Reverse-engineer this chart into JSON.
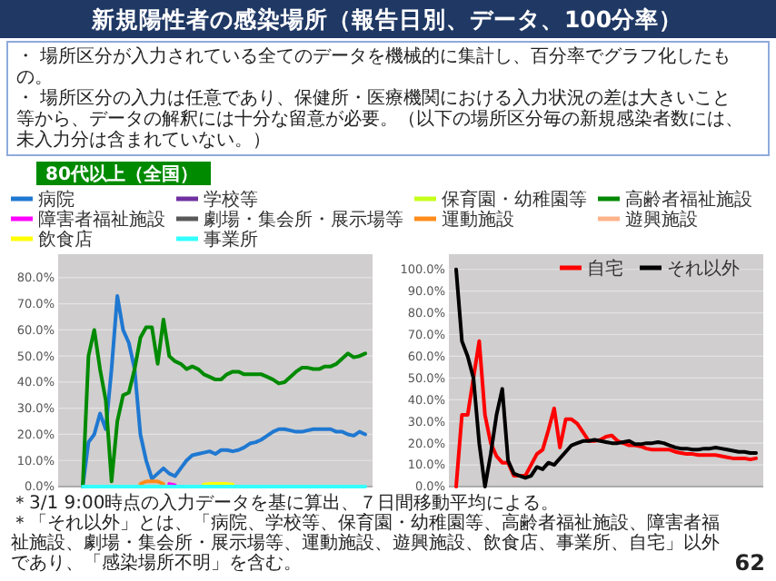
{
  "chart_data": [
    {
      "type": "line",
      "title": "新規陽性者の感染場所（報告日別、データ、100分率）",
      "subtitle": "80代以上（全国）",
      "annotations": [
        "・ 場所区分が入力されている全てのデータを機械的に集計し、百分率でグラフ化したもの。",
        "・ 場所区分の入力は任意であり、保健所・医療機関における入力状況の差は大きいこと等から、データの解釈には十分な留意が必要。（以下の場所区分毎の新規感染者数には、未入力分は含まれていない。）",
        "＊3/1 9:00時点の入力データを基に算出、７日間移動平均による。",
        "＊「それ以外」とは、「病院、学校等、保育園・幼稚園等、高齢者福祉施設、障害者福祉施設、劇場・集会所・展示場等、運動施設、遊興施設、飲食店、事業所、自宅」以外であり、「感染場所不明」を含む。",
        "62"
      ],
      "categories": [
        null,
        null,
        null,
        null,
        null,
        null,
        null,
        null,
        null,
        null,
        null,
        null,
        null,
        null,
        null,
        null,
        null,
        null,
        null,
        null,
        null,
        null,
        null,
        null,
        null,
        null,
        null,
        null,
        null,
        null,
        null,
        null,
        null,
        null,
        null,
        null,
        null,
        null,
        null,
        null,
        null,
        null,
        null,
        null,
        null,
        null,
        null,
        null,
        null,
        null,
        null,
        null,
        null
      ],
      "ylim": [
        0,
        89
      ],
      "yticks": [
        {
          "value": 0,
          "label": "0.0%"
        },
        {
          "value": 10,
          "label": "10.0%"
        },
        {
          "value": 20,
          "label": "20.0%"
        },
        {
          "value": 30,
          "label": "30.0%"
        },
        {
          "value": 40,
          "label": "40.0%"
        },
        {
          "value": 50,
          "label": "50.0%"
        },
        {
          "value": 60,
          "label": "60.0%"
        },
        {
          "value": 70,
          "label": "70.0%"
        },
        {
          "value": 80,
          "label": "80.0%"
        }
      ],
      "grid": "y",
      "legend": "top",
      "tick_labels": "y",
      "series": [
        {
          "name": "病院",
          "color": "#1f78d1",
          "values": [
            null,
            null,
            null,
            0,
            17,
            20,
            28,
            22,
            45,
            73,
            60,
            55,
            45,
            20,
            10,
            3,
            5,
            7,
            5,
            4,
            7,
            10,
            12,
            12.5,
            13,
            13.5,
            12.5,
            14,
            14,
            13.5,
            14,
            15,
            16.5,
            17,
            18,
            19.5,
            21,
            22,
            22,
            21.5,
            21,
            21,
            21.5,
            22,
            22,
            22,
            22,
            21,
            21,
            20,
            19.5,
            21,
            20
          ]
        },
        {
          "name": "学校等",
          "color": "#7030a0",
          "values": [
            null,
            null,
            null,
            null,
            null,
            null,
            null,
            null,
            null,
            null,
            null,
            null,
            null,
            null,
            null,
            null,
            null,
            null,
            null,
            null,
            null,
            null,
            null,
            null,
            null,
            null,
            null,
            null,
            null,
            null,
            null,
            null,
            null,
            null,
            null,
            null,
            null,
            null,
            null,
            null,
            null,
            null,
            null,
            null,
            null,
            null,
            null,
            null,
            null,
            null,
            null,
            null,
            null
          ]
        },
        {
          "name": "保育園・幼稚園等",
          "color": "#c6ff1a",
          "values": [
            null,
            null,
            null,
            null,
            null,
            null,
            null,
            null,
            null,
            null,
            null,
            null,
            null,
            null,
            null,
            null,
            null,
            null,
            null,
            null,
            null,
            null,
            null,
            null,
            null,
            null,
            null,
            null,
            null,
            null,
            null,
            null,
            null,
            null,
            null,
            null,
            null,
            null,
            null,
            null,
            null,
            null,
            null,
            null,
            null,
            null,
            null,
            null,
            null,
            null,
            null,
            null,
            null
          ]
        },
        {
          "name": "高齢者福祉施設",
          "color": "#008a00",
          "values": [
            null,
            null,
            null,
            0,
            50,
            60,
            45,
            33,
            2,
            25,
            35,
            36,
            45,
            57,
            61,
            61,
            47,
            64,
            50,
            48,
            47,
            45,
            46,
            45,
            43,
            42,
            41,
            41,
            43,
            44,
            44,
            43,
            43,
            43,
            43,
            42,
            41,
            39.5,
            40,
            42,
            44,
            45.5,
            45.5,
            45,
            45,
            46,
            46,
            47,
            49,
            51,
            49.5,
            50,
            51
          ]
        },
        {
          "name": "障害者福祉施設",
          "color": "#ff00ff",
          "values": [
            null,
            null,
            null,
            null,
            null,
            null,
            null,
            null,
            null,
            null,
            null,
            null,
            null,
            null,
            null,
            null,
            null,
            null,
            1,
            0.5,
            null,
            null,
            null,
            null,
            null,
            null,
            null,
            null,
            null,
            null,
            null,
            null,
            null,
            null,
            null,
            null,
            null,
            null,
            null,
            null,
            null,
            null,
            null,
            null,
            null,
            null,
            null,
            null,
            null,
            null,
            null,
            null,
            null
          ]
        },
        {
          "name": "劇場・集会所・展示場等",
          "color": "#595959",
          "values": [
            null,
            null,
            null,
            null,
            null,
            null,
            null,
            null,
            null,
            null,
            null,
            null,
            null,
            null,
            null,
            null,
            null,
            null,
            null,
            null,
            null,
            null,
            null,
            null,
            null,
            null,
            null,
            null,
            null,
            null,
            null,
            null,
            null,
            null,
            null,
            null,
            null,
            null,
            null,
            null,
            null,
            null,
            null,
            null,
            null,
            null,
            null,
            null,
            null,
            null,
            null,
            null,
            null
          ]
        },
        {
          "name": "運動施設",
          "color": "#ff8c1a",
          "values": [
            null,
            null,
            null,
            null,
            null,
            null,
            null,
            null,
            null,
            null,
            null,
            null,
            null,
            1,
            2,
            2,
            2,
            1,
            null,
            null,
            null,
            null,
            null,
            null,
            null,
            null,
            null,
            null,
            null,
            null,
            null,
            null,
            null,
            null,
            null,
            null,
            null,
            null,
            null,
            null,
            null,
            null,
            null,
            null,
            null,
            null,
            null,
            null,
            null,
            null,
            null,
            null,
            null
          ]
        },
        {
          "name": "遊興施設",
          "color": "#ffb38a",
          "values": [
            null,
            null,
            null,
            null,
            null,
            null,
            null,
            null,
            null,
            null,
            null,
            null,
            null,
            null,
            null,
            null,
            null,
            null,
            null,
            null,
            null,
            null,
            null,
            null,
            null,
            null,
            null,
            null,
            null,
            null,
            null,
            null,
            null,
            null,
            null,
            null,
            null,
            null,
            null,
            null,
            null,
            null,
            null,
            null,
            null,
            null,
            null,
            null,
            null,
            null,
            null,
            null,
            null
          ]
        },
        {
          "name": "飲食店",
          "color": "#ffff00",
          "values": [
            null,
            null,
            null,
            null,
            null,
            null,
            null,
            null,
            null,
            null,
            null,
            null,
            null,
            null,
            null,
            null,
            null,
            null,
            null,
            null,
            null,
            null,
            null,
            null,
            0.8,
            1,
            1,
            1,
            1,
            0.8,
            null,
            null,
            null,
            null,
            null,
            null,
            null,
            null,
            null,
            null,
            null,
            null,
            null,
            null,
            null,
            null,
            null,
            null,
            null,
            null,
            null,
            null,
            null
          ]
        },
        {
          "name": "事業所",
          "color": "#33ffff",
          "values": [
            null,
            null,
            null,
            0,
            0,
            0,
            0,
            0,
            0,
            0,
            0,
            0,
            0,
            0,
            0,
            0,
            0,
            0,
            0,
            0,
            0,
            0,
            0,
            0,
            0,
            0,
            0,
            0,
            0,
            0,
            0,
            0,
            0,
            0,
            0,
            0,
            0,
            0,
            0,
            0,
            0,
            0,
            0,
            0,
            0,
            0,
            0,
            0,
            0,
            0,
            0,
            0,
            0
          ]
        }
      ]
    },
    {
      "type": "line",
      "categories": [
        null,
        null,
        null,
        null,
        null,
        null,
        null,
        null,
        null,
        null,
        null,
        null,
        null,
        null,
        null,
        null,
        null,
        null,
        null,
        null,
        null,
        null,
        null,
        null,
        null,
        null,
        null,
        null,
        null,
        null,
        null,
        null,
        null,
        null,
        null,
        null,
        null,
        null,
        null,
        null,
        null,
        null,
        null,
        null,
        null,
        null,
        null,
        null,
        null,
        null,
        null,
        null,
        null
      ],
      "ylim": [
        0,
        107
      ],
      "yticks": [
        {
          "value": 0,
          "label": "0.0%"
        },
        {
          "value": 10,
          "label": "10.0%"
        },
        {
          "value": 20,
          "label": "20.0%"
        },
        {
          "value": 30,
          "label": "30.0%"
        },
        {
          "value": 40,
          "label": "40.0%"
        },
        {
          "value": 50,
          "label": "50.0%"
        },
        {
          "value": 60,
          "label": "60.0%"
        },
        {
          "value": 70,
          "label": "70.0%"
        },
        {
          "value": 80,
          "label": "80.0%"
        },
        {
          "value": 90,
          "label": "90.0%"
        },
        {
          "value": 100,
          "label": "100.0%"
        }
      ],
      "grid": "y",
      "legend": "top right",
      "tick_labels": "y",
      "series": [
        {
          "name": "自宅",
          "color": "#ff0000",
          "values": [
            0,
            33,
            33,
            50,
            67,
            33,
            20,
            14,
            11,
            11,
            5,
            5,
            5,
            10,
            15,
            17,
            26,
            36,
            18,
            31,
            31,
            29,
            25,
            21,
            21,
            21.5,
            23,
            23.5,
            21,
            20,
            19,
            19,
            18.5,
            17.5,
            17,
            17,
            17,
            17,
            16,
            15.5,
            15,
            15,
            14.5,
            14.5,
            14.5,
            14.5,
            14,
            13.5,
            13,
            13,
            13,
            12.5,
            13
          ]
        },
        {
          "name": "それ以外",
          "color": "#000000",
          "values": [
            100,
            67,
            60,
            50,
            20,
            0,
            15,
            33,
            45,
            12,
            6,
            5,
            4,
            5,
            9,
            8,
            11,
            10,
            13,
            16,
            19,
            20,
            21,
            21,
            21.5,
            21,
            20.5,
            20,
            20,
            20.5,
            21,
            19.5,
            19.5,
            20,
            20,
            20.5,
            20,
            19,
            18,
            17.5,
            17.5,
            17,
            17,
            17.5,
            17.5,
            18,
            17.5,
            17,
            16.5,
            16,
            16,
            15.5,
            15.5
          ]
        }
      ]
    }
  ]
}
